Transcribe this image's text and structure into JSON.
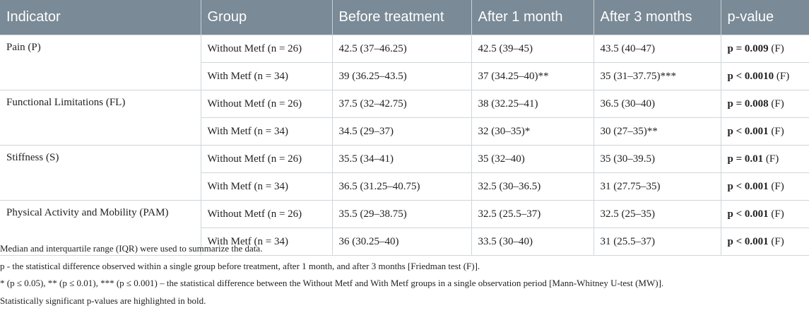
{
  "headers": [
    "Indicator",
    "Group",
    "Before treatment",
    "After 1 month",
    "After 3 months",
    "p-value"
  ],
  "indicators": [
    {
      "name": "Pain (P)",
      "rows": [
        {
          "group": "Without Metf (n = 26)",
          "before": "42.5 (37–46.25)",
          "m1": "42.5 (39–45)",
          "m3": "43.5 (40–47)",
          "p_bold": "p = 0.009",
          "p_rest": " (F)"
        },
        {
          "group": "With Metf (n = 34)",
          "before": "39 (36.25–43.5)",
          "m1": "37 (34.25–40)**",
          "m3": "35 (31–37.75)***",
          "p_bold": "p < 0.0010",
          "p_rest": " (F)"
        }
      ]
    },
    {
      "name": "Functional Limitations (FL)",
      "rows": [
        {
          "group": "Without Metf (n = 26)",
          "before": "37.5 (32–42.75)",
          "m1": "38 (32.25–41)",
          "m3": "36.5 (30–40)",
          "p_bold": "p = 0.008",
          "p_rest": " (F)"
        },
        {
          "group": "With Metf (n = 34)",
          "before": "34.5 (29–37)",
          "m1": "32 (30–35)*",
          "m3": "30 (27–35)**",
          "p_bold": "p < 0.001",
          "p_rest": " (F)"
        }
      ]
    },
    {
      "name": "Stiffness (S)",
      "rows": [
        {
          "group": "Without Metf (n = 26)",
          "before": "35.5 (34–41)",
          "m1": "35 (32–40)",
          "m3": "35 (30–39.5)",
          "p_bold": "p = 0.01",
          "p_rest": " (F)"
        },
        {
          "group": "With Metf (n = 34)",
          "before": "36.5 (31.25–40.75)",
          "m1": "32.5 (30–36.5)",
          "m3": "31 (27.75–35)",
          "p_bold": "p < 0.001",
          "p_rest": " (F)"
        }
      ]
    },
    {
      "name": "Physical Activity and Mobility (PAM)",
      "rows": [
        {
          "group": "Without Metf (n = 26)",
          "before": "35.5 (29–38.75)",
          "m1": "32.5 (25.5–37)",
          "m3": "32.5 (25–35)",
          "p_bold": "p < 0.001",
          "p_rest": " (F)"
        },
        {
          "group": "With Metf (n = 34)",
          "before": "36 (30.25–40)",
          "m1": "33.5 (30–40)",
          "m3": "31 (25.5–37)",
          "p_bold": "p < 0.001",
          "p_rest": " (F)"
        }
      ]
    }
  ],
  "notes": [
    "Median and interquartile range (IQR) were used to summarize the data.",
    "p - the statistical difference observed within a single group before treatment, after 1 month, and after 3 months [Friedman test (F)].",
    "* (p ≤ 0.05), ** (p ≤ 0.01), *** (p ≤ 0.001) – the statistical difference between the Without Metf and With Metf groups in a single observation period [Mann-Whitney U-test (MW)].",
    "Statistically significant p-values are highlighted in bold."
  ],
  "colors": {
    "header_bg": "#7a8a96",
    "header_text": "#ffffff",
    "border": "#cfd6db"
  }
}
